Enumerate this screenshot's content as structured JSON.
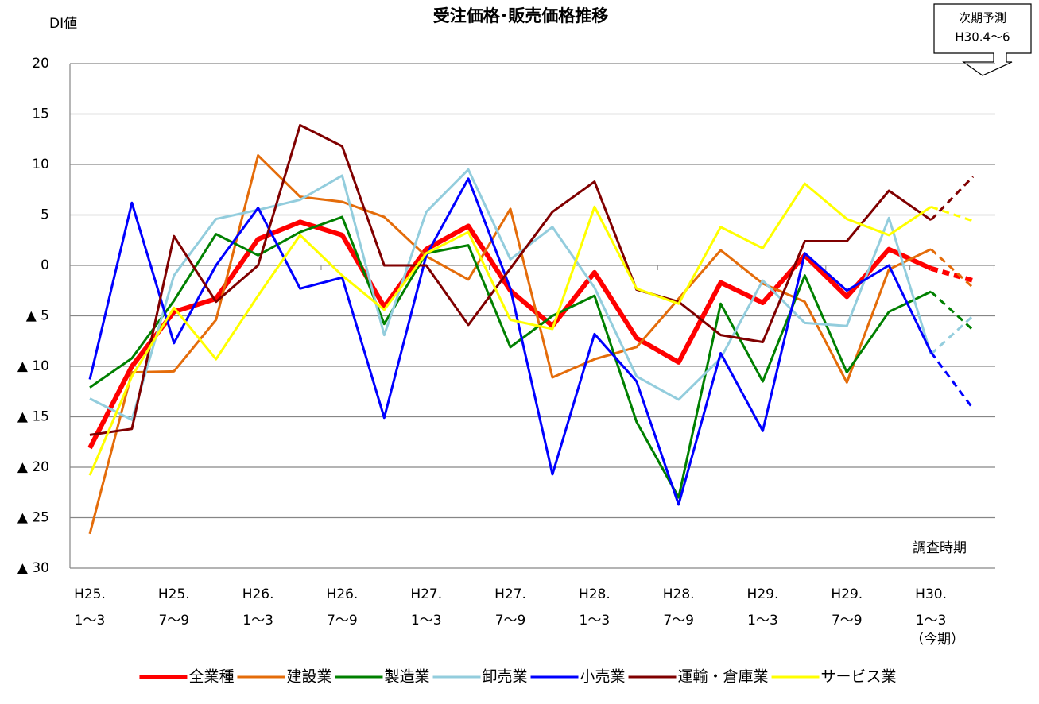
{
  "chart_data": {
    "type": "line",
    "title": "受注価格･販売価格推移",
    "y_axis_label": "DI値",
    "x_axis_label": "調査時期",
    "annotation": [
      "次期予測",
      "H30.4〜6"
    ],
    "categories": [
      [
        "H25.",
        "1〜3"
      ],
      null,
      [
        "H25.",
        "7〜9"
      ],
      null,
      [
        "H26.",
        "1〜3"
      ],
      null,
      [
        "H26.",
        "7〜9"
      ],
      null,
      [
        "H27.",
        "1〜3"
      ],
      null,
      [
        "H27.",
        "7〜9"
      ],
      null,
      [
        "H28.",
        "1〜3"
      ],
      null,
      [
        "H28.",
        "7〜9"
      ],
      null,
      [
        "H29.",
        "1〜3"
      ],
      null,
      [
        "H29.",
        "7〜9"
      ],
      null,
      [
        "H30.",
        "1〜3",
        "（今期）"
      ],
      null
    ],
    "ylim": [
      -30,
      20
    ],
    "yticks": [
      {
        "value": -30,
        "label": "▲ 30"
      },
      {
        "value": -25,
        "label": "▲ 25"
      },
      {
        "value": -20,
        "label": "▲ 20"
      },
      {
        "value": -15,
        "label": "▲ 15"
      },
      {
        "value": -10,
        "label": "▲ 10"
      },
      {
        "value": -5,
        "label": "▲ 5"
      },
      0,
      5,
      10,
      15,
      20
    ],
    "grid": true,
    "legend": "bottom",
    "series": [
      {
        "name": "全業種",
        "color": "#ff0000",
        "width": 6,
        "values": [
          -18.1,
          -10.0,
          -4.6,
          -3.3,
          2.6,
          4.3,
          3.0,
          -4.1,
          1.6,
          3.9,
          -2.5,
          -6.0,
          -0.7,
          -7.2,
          -9.6,
          -1.7,
          -3.7,
          1.0,
          -3.1,
          1.6,
          -0.3,
          -1.5
        ]
      },
      {
        "name": "建設業",
        "color": "#e46c0a",
        "width": 3,
        "values": [
          -26.6,
          -10.6,
          -10.5,
          -5.4,
          10.9,
          6.8,
          6.3,
          4.8,
          0.9,
          -1.4,
          5.6,
          -11.1,
          -9.3,
          -8.1,
          -3.3,
          1.5,
          -1.8,
          -3.6,
          -11.6,
          -0.4,
          1.6,
          -2.2
        ]
      },
      {
        "name": "製造業",
        "color": "#008000",
        "width": 3,
        "values": [
          -12.1,
          -9.2,
          -3.5,
          3.1,
          1.0,
          3.3,
          4.8,
          -5.8,
          1.2,
          2.0,
          -8.1,
          -5.0,
          -3.0,
          -15.5,
          -23.0,
          -3.8,
          -11.5,
          -1.0,
          -10.6,
          -4.6,
          -2.6,
          -6.4
        ]
      },
      {
        "name": "卸売業",
        "color": "#93cddd",
        "width": 3,
        "values": [
          -13.2,
          -15.3,
          -1.0,
          4.6,
          5.5,
          6.5,
          8.9,
          -6.9,
          5.3,
          9.5,
          0.6,
          3.8,
          -2.2,
          -11.0,
          -13.3,
          -9.2,
          -1.5,
          -5.7,
          -6.0,
          4.7,
          -8.8,
          -5.0
        ]
      },
      {
        "name": "小売業",
        "color": "#0000ff",
        "width": 3,
        "values": [
          -11.3,
          6.2,
          -7.7,
          0.0,
          5.7,
          -2.3,
          -1.2,
          -15.1,
          1.0,
          8.6,
          -2.3,
          -20.7,
          -6.8,
          -11.5,
          -23.7,
          -8.7,
          -16.4,
          1.2,
          -2.5,
          0.0,
          -8.6,
          -14.2
        ]
      },
      {
        "name": "運輸・倉庫業",
        "color": "#800000",
        "width": 3,
        "values": [
          -16.8,
          -16.2,
          2.9,
          -3.6,
          0.0,
          13.9,
          11.8,
          0.0,
          0.0,
          -5.9,
          -0.3,
          5.3,
          8.3,
          -2.4,
          -3.6,
          -6.9,
          -7.6,
          2.4,
          2.4,
          7.4,
          4.5,
          8.8
        ]
      },
      {
        "name": "サービス業",
        "color": "#ffff00",
        "width": 3,
        "values": [
          -20.8,
          -11.0,
          -4.2,
          -9.3,
          -3.0,
          3.0,
          -1.0,
          -4.4,
          1.2,
          3.3,
          -5.4,
          -6.3,
          5.8,
          -2.3,
          -3.8,
          3.8,
          1.7,
          8.1,
          4.6,
          3.0,
          5.8,
          4.4
        ]
      }
    ]
  }
}
